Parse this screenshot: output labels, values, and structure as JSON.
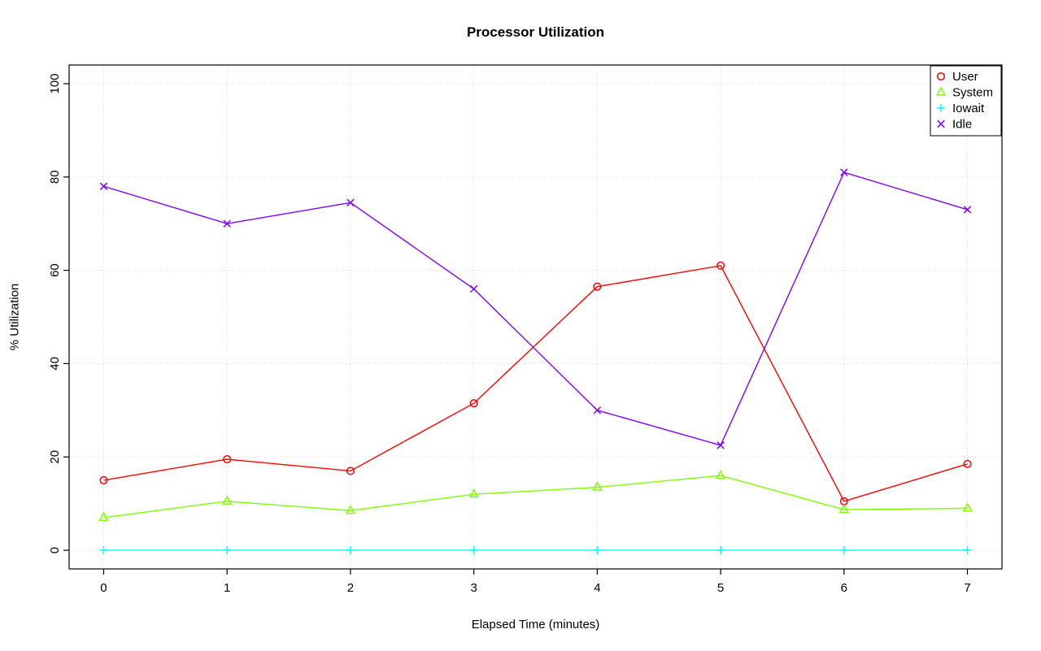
{
  "chart_data": {
    "type": "line",
    "title": "Processor Utilization",
    "xlabel": "Elapsed Time (minutes)",
    "ylabel": "% Utilization",
    "x": [
      0,
      1,
      2,
      3,
      4,
      5,
      6,
      7
    ],
    "xlim": [
      -0.28,
      7.28
    ],
    "ylim": [
      -4,
      104
    ],
    "xticks": [
      0,
      1,
      2,
      3,
      4,
      5,
      6,
      7
    ],
    "yticks": [
      0,
      20,
      40,
      60,
      80,
      100
    ],
    "grid": true,
    "grid_color": "#d3d3d3",
    "legend_position": "top-right",
    "series": [
      {
        "name": "User",
        "color": "#ff0000",
        "marker": "circle",
        "values": [
          15,
          19.5,
          17,
          31.5,
          56.5,
          61,
          10.5,
          18.5
        ]
      },
      {
        "name": "System",
        "color": "#80ff00",
        "marker": "triangle",
        "values": [
          7,
          10.5,
          8.5,
          12,
          13.5,
          16,
          8.7,
          9
        ]
      },
      {
        "name": "Iowait",
        "color": "#00ffff",
        "marker": "plus",
        "values": [
          0,
          0,
          0,
          0,
          0,
          0,
          0,
          0
        ]
      },
      {
        "name": "Idle",
        "color": "#8000ff",
        "marker": "x",
        "values": [
          78,
          70,
          74.5,
          56,
          30,
          22.5,
          81,
          73
        ]
      }
    ]
  }
}
